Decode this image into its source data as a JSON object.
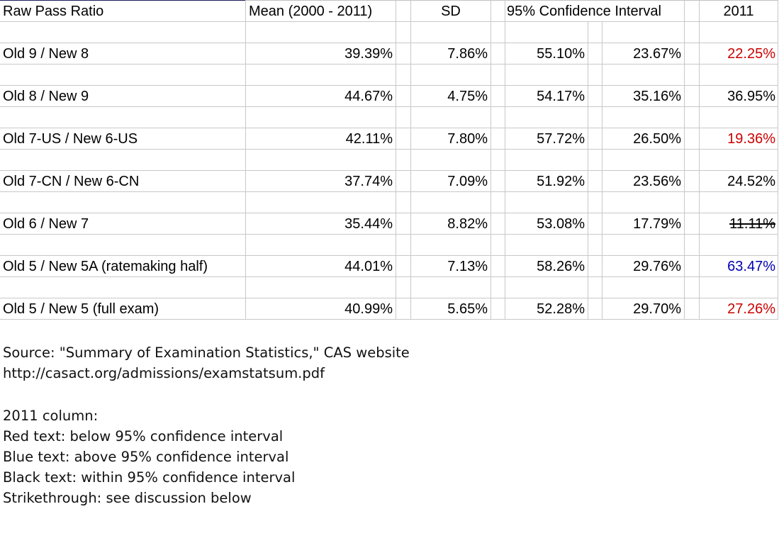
{
  "table": {
    "headers": {
      "label": "Raw Pass Ratio",
      "mean": "Mean (2000 - 2011)",
      "sd": "SD",
      "ci": "95% Confidence Interval",
      "y2011": "2011"
    },
    "rows": [
      {
        "label": "Old 9 / New 8",
        "mean": "39.39%",
        "sd": "7.86%",
        "ci_high": "55.10%",
        "ci_low": "23.67%",
        "y2011": "22.25%",
        "status": "below"
      },
      {
        "label": "Old 8 / New 9",
        "mean": "44.67%",
        "sd": "4.75%",
        "ci_high": "54.17%",
        "ci_low": "35.16%",
        "y2011": "36.95%",
        "status": "within"
      },
      {
        "label": "Old 7-US / New 6-US",
        "mean": "42.11%",
        "sd": "7.80%",
        "ci_high": "57.72%",
        "ci_low": "26.50%",
        "y2011": "19.36%",
        "status": "below"
      },
      {
        "label": "Old 7-CN / New 6-CN",
        "mean": "37.74%",
        "sd": "7.09%",
        "ci_high": "51.92%",
        "ci_low": "23.56%",
        "y2011": "24.52%",
        "status": "within"
      },
      {
        "label": "Old 6 / New 7",
        "mean": "35.44%",
        "sd": "8.82%",
        "ci_high": "53.08%",
        "ci_low": "17.79%",
        "y2011": "11.11%",
        "status": "strikethrough"
      },
      {
        "label": "Old 5 / New 5A (ratemaking half)",
        "mean": "44.01%",
        "sd": "7.13%",
        "ci_high": "58.26%",
        "ci_low": "29.76%",
        "y2011": "63.47%",
        "status": "above"
      },
      {
        "label": "Old 5 / New 5 (full exam)",
        "mean": "40.99%",
        "sd": "5.65%",
        "ci_high": "52.28%",
        "ci_low": "29.70%",
        "y2011": "27.26%",
        "status": "below"
      }
    ]
  },
  "colors": {
    "below": "#cc0000",
    "above": "#0000b4",
    "within": "#000000",
    "strikethrough": "#000000",
    "gridline": "#c8c8c8"
  },
  "notes": {
    "source_line": "Source: \"Summary of Examination Statistics,\" CAS website",
    "url_line": "http://casact.org/admissions/examstatsum.pdf",
    "legend_title": "2011 column:",
    "legend_red": "Red text: below 95% confidence interval",
    "legend_blue": "Blue text: above 95% confidence interval",
    "legend_black": "Black text: within 95% confidence interval",
    "legend_strike": "Strikethrough: see discussion below"
  }
}
